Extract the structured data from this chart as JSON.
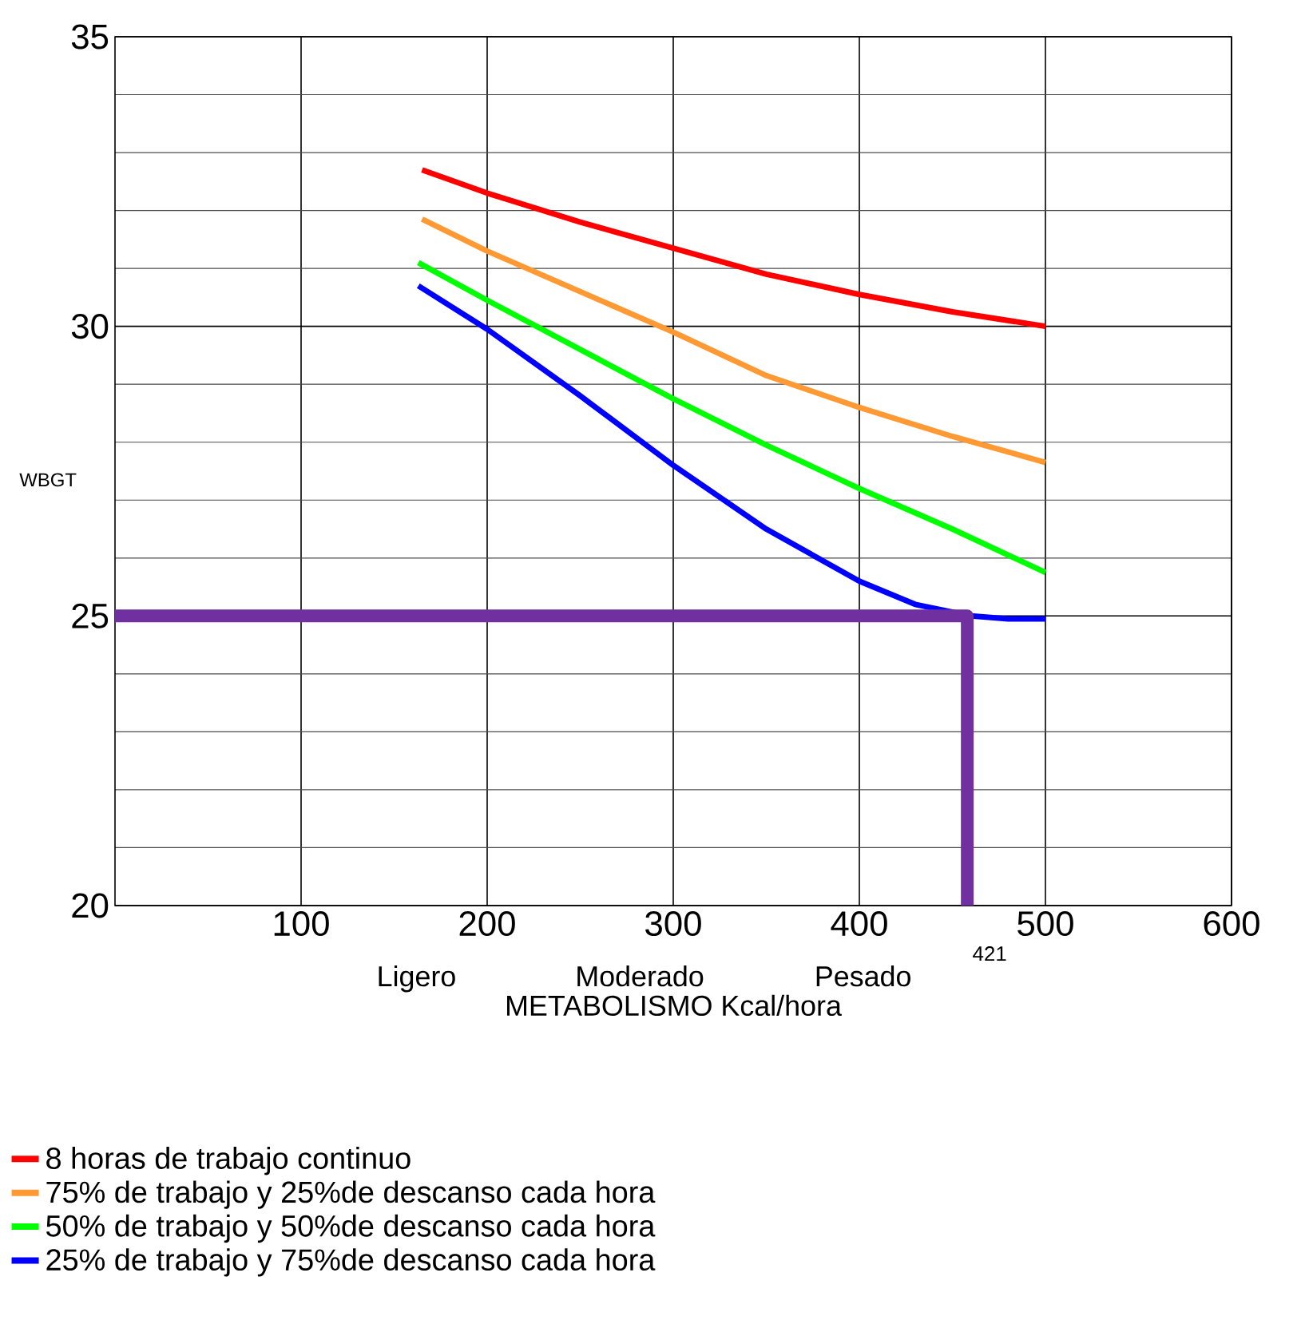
{
  "chart_data": {
    "type": "line",
    "xlabel": "METABOLISMO Kcal/hora",
    "ylabel": "WBGT",
    "xlim": [
      0,
      600
    ],
    "ylim": [
      20,
      35
    ],
    "xticks": [
      100,
      200,
      300,
      400,
      500,
      600
    ],
    "yticks": [
      20,
      25,
      30,
      35
    ],
    "grid": true,
    "legend": "bottom",
    "line_style": "solid",
    "marker": "none",
    "series": [
      {
        "name": "8 horas de trabajo continuo",
        "color": "#ff0000",
        "x": [
          165,
          200,
          250,
          300,
          350,
          400,
          450,
          500
        ],
        "values": [
          32.7,
          32.3,
          31.8,
          31.35,
          30.9,
          30.55,
          30.25,
          30.0
        ]
      },
      {
        "name": "75% de trabajo y 25%de descanso cada hora",
        "color": "#ff9933",
        "x": [
          165,
          200,
          250,
          300,
          350,
          400,
          450,
          500
        ],
        "values": [
          31.85,
          31.3,
          30.6,
          29.9,
          29.15,
          28.6,
          28.1,
          27.65
        ]
      },
      {
        "name": "50% de trabajo y 50%de descanso cada hora",
        "color": "#00ff00",
        "x": [
          163,
          200,
          250,
          300,
          350,
          400,
          450,
          500
        ],
        "values": [
          31.1,
          30.45,
          29.6,
          28.75,
          27.95,
          27.2,
          26.5,
          25.75
        ]
      },
      {
        "name": "25% de trabajo y 75%de descanso cada hora",
        "color": "#0000ff",
        "x": [
          163,
          200,
          250,
          300,
          350,
          400,
          430,
          460,
          480,
          500
        ],
        "values": [
          30.7,
          29.95,
          28.8,
          27.6,
          26.5,
          25.6,
          25.2,
          25.0,
          24.95,
          24.95
        ]
      },
      {
        "color": "#7030a0",
        "x": [
          0,
          458,
          458
        ],
        "values": [
          25,
          25,
          20
        ]
      }
    ],
    "annotations": [
      {
        "text": "421",
        "x": 458,
        "y": 20
      },
      "Ligero",
      "Moderado",
      "Pesado"
    ]
  }
}
